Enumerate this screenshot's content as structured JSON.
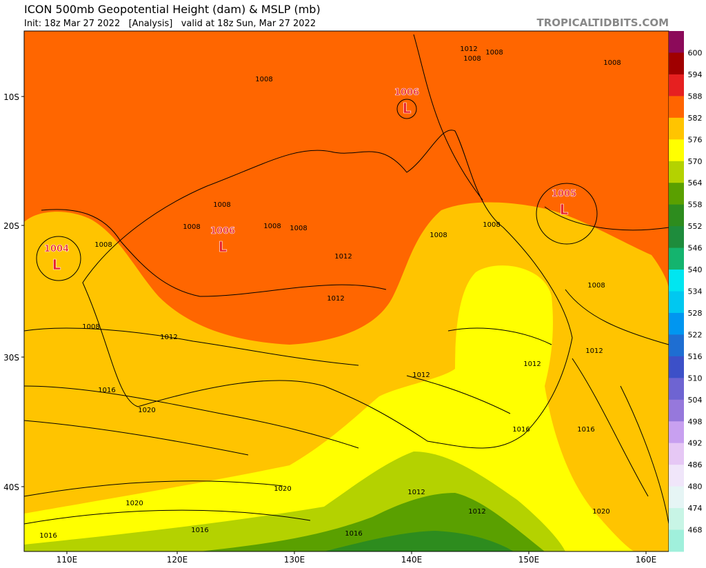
{
  "header": {
    "title": "ICON 500mb Geopotential Height (dam) & MSLP (mb)",
    "subtitle": "Init: 18z Mar 27 2022   [Analysis]   valid at 18z Sun, Mar 27 2022",
    "brand": "TROPICALTIDBITS.COM"
  },
  "map": {
    "lat_labels": [
      "10S",
      "20S",
      "30S",
      "40S"
    ],
    "lon_labels": [
      "110E",
      "120E",
      "130E",
      "140E",
      "150E",
      "160E"
    ],
    "lows": [
      {
        "pressure": "1006",
        "symbol": "L"
      },
      {
        "pressure": "1005",
        "symbol": "L"
      },
      {
        "pressure": "1006",
        "symbol": "L"
      },
      {
        "pressure": "1004",
        "symbol": "L"
      }
    ],
    "contour_labels": [
      "1012",
      "1008",
      "1008",
      "1008",
      "1008",
      "1008",
      "1008",
      "1008",
      "1008",
      "1008",
      "1012",
      "1012",
      "1008",
      "1008",
      "1008",
      "1008",
      "1012",
      "1012",
      "1012",
      "1012",
      "1016",
      "1020",
      "1016",
      "1016",
      "1020",
      "1012",
      "1020",
      "1012",
      "1020",
      "1016",
      "1016",
      "1016"
    ]
  },
  "colorbar": {
    "levels": [
      600,
      594,
      588,
      582,
      576,
      570,
      564,
      558,
      552,
      546,
      540,
      534,
      528,
      522,
      516,
      510,
      504,
      498,
      492,
      486,
      480,
      474,
      468
    ],
    "colors": [
      "#8c0a5a",
      "#a00000",
      "#e62020",
      "#ff6400",
      "#ffc400",
      "#ffff00",
      "#b4d200",
      "#5aa000",
      "#2d8c1e",
      "#1e8c3c",
      "#14b46e",
      "#00e6f0",
      "#00c8f0",
      "#0096f0",
      "#1e6ed2",
      "#3c50c8",
      "#6e64d2",
      "#9678dc",
      "#c8a0f0",
      "#e6c8f5",
      "#f0e6fa",
      "#e6f5f5",
      "#c8f5e6",
      "#a0f0dc"
    ]
  }
}
